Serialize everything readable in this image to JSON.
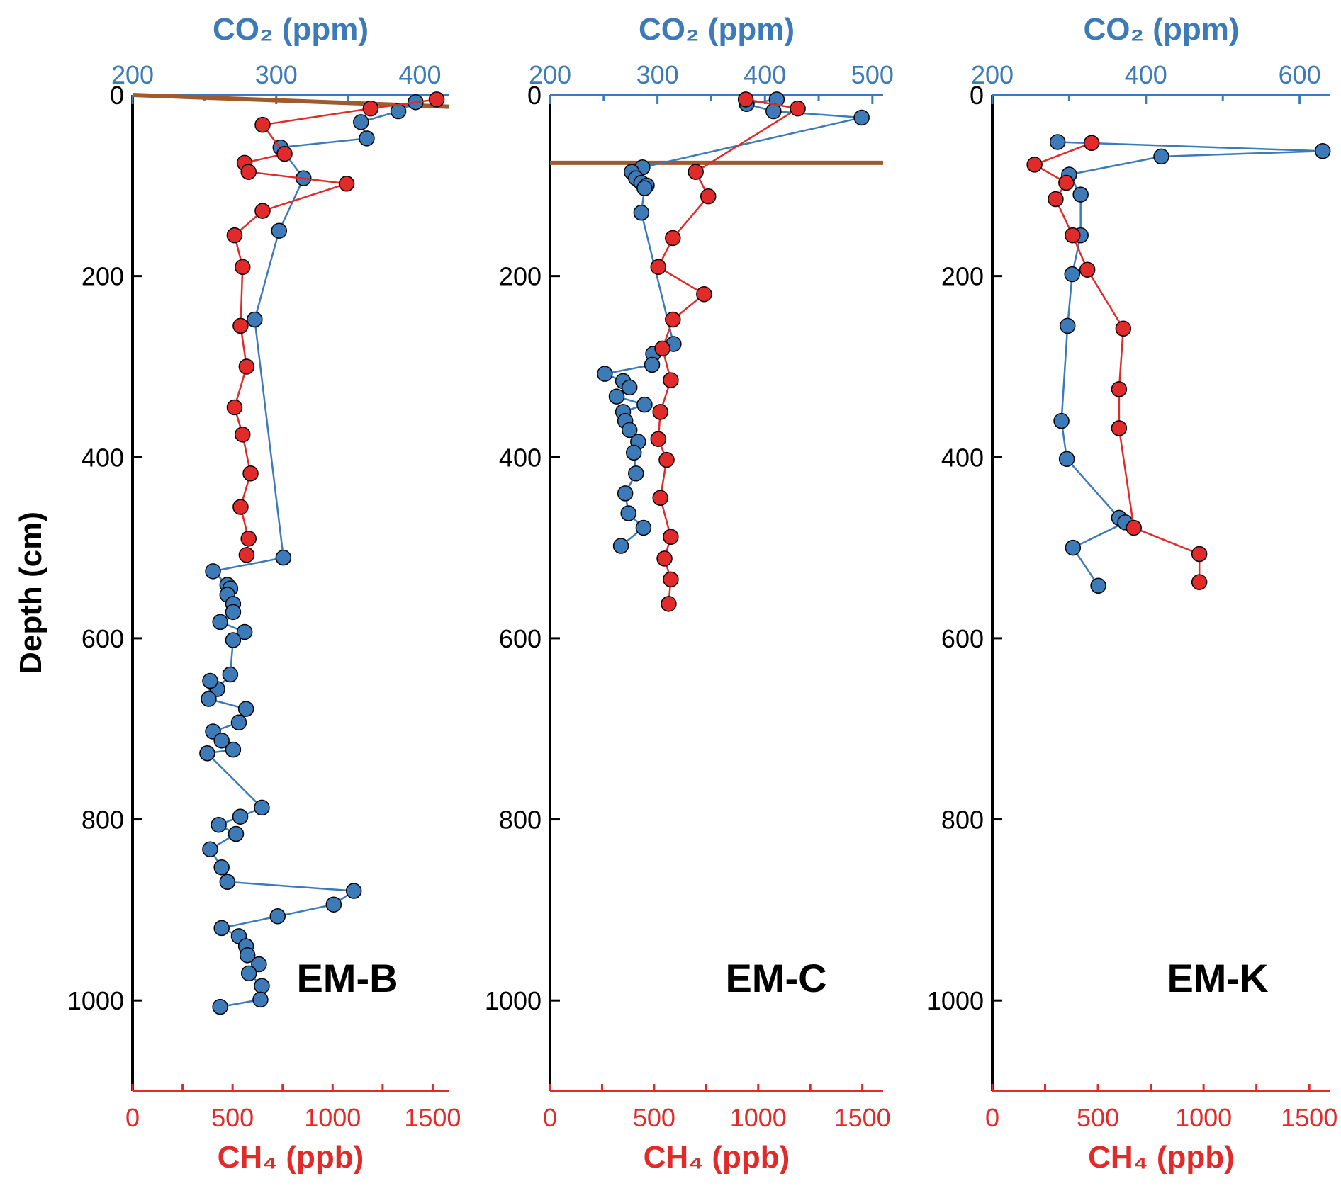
{
  "chart_data": {
    "type": "scatter",
    "y_label": "Depth (cm)",
    "y_range": [
      0,
      1100
    ],
    "y_ticks": [
      "0",
      "200",
      "400",
      "600",
      "800",
      "1000"
    ],
    "co2_axis_label": "CO₂ (ppm)",
    "ch4_axis_label": "CH₄ (ppb)",
    "colors": {
      "co2": "#3d7ab8",
      "ch4": "#e12a2a",
      "marker": "#000000",
      "line": "#a05a2c"
    },
    "panels": [
      {
        "name": "EM-B",
        "co2_range": [
          200,
          420
        ],
        "co2_ticks": [
          "200",
          "300",
          "400"
        ],
        "ch4_range": [
          0,
          1580
        ],
        "ch4_ticks": [
          "0",
          "500",
          "1000",
          "1500"
        ],
        "reference_line": {
          "depth_start": 0,
          "depth_end": 13
        },
        "co2": [
          [
            397,
            8
          ],
          [
            385,
            18
          ],
          [
            359,
            30
          ],
          [
            363,
            48
          ],
          [
            303,
            58
          ],
          [
            319,
            92
          ],
          [
            302,
            150
          ],
          [
            285,
            248
          ],
          [
            305,
            511
          ],
          [
            256,
            526
          ],
          [
            266,
            541
          ],
          [
            268,
            545
          ],
          [
            266,
            552
          ],
          [
            270,
            562
          ],
          [
            270,
            571
          ],
          [
            261,
            582
          ],
          [
            278,
            593
          ],
          [
            270,
            602
          ],
          [
            268,
            640
          ],
          [
            259,
            656
          ],
          [
            254,
            647
          ],
          [
            253,
            667
          ],
          [
            279,
            678
          ],
          [
            274,
            693
          ],
          [
            256,
            703
          ],
          [
            262,
            713
          ],
          [
            270,
            723
          ],
          [
            252,
            727
          ],
          [
            290,
            787
          ],
          [
            275,
            797
          ],
          [
            260,
            806
          ],
          [
            272,
            816
          ],
          [
            254,
            833
          ],
          [
            262,
            853
          ],
          [
            266,
            869
          ],
          [
            354,
            879
          ],
          [
            340,
            894
          ],
          [
            301,
            907
          ],
          [
            262,
            920
          ],
          [
            274,
            929
          ],
          [
            279,
            940
          ],
          [
            280,
            950
          ],
          [
            288,
            960
          ],
          [
            281,
            970
          ],
          [
            290,
            984
          ],
          [
            289,
            999
          ],
          [
            261,
            1007
          ]
        ],
        "ch4": [
          [
            1520,
            5
          ],
          [
            1190,
            15
          ],
          [
            650,
            33
          ],
          [
            760,
            65
          ],
          [
            560,
            75
          ],
          [
            580,
            85
          ],
          [
            1070,
            98
          ],
          [
            650,
            128
          ],
          [
            510,
            155
          ],
          [
            550,
            190
          ],
          [
            540,
            255
          ],
          [
            570,
            300
          ],
          [
            510,
            345
          ],
          [
            550,
            375
          ],
          [
            590,
            418
          ],
          [
            540,
            455
          ],
          [
            580,
            490
          ],
          [
            570,
            508
          ]
        ]
      },
      {
        "name": "EM-C",
        "co2_range": [
          200,
          510
        ],
        "co2_ticks": [
          "200",
          "300",
          "400",
          "500"
        ],
        "ch4_range": [
          0,
          1600
        ],
        "ch4_ticks": [
          "0",
          "500",
          "1000",
          "1500"
        ],
        "reference_line": {
          "depth_start": 75,
          "depth_end": 75
        },
        "co2": [
          [
            411,
            5
          ],
          [
            383,
            10
          ],
          [
            408,
            18
          ],
          [
            490,
            25
          ],
          [
            286,
            80
          ],
          [
            276,
            85
          ],
          [
            280,
            92
          ],
          [
            285,
            97
          ],
          [
            290,
            100
          ],
          [
            288,
            103
          ],
          [
            285,
            130
          ],
          [
            315,
            275
          ],
          [
            296,
            286
          ],
          [
            295,
            298
          ],
          [
            251,
            308
          ],
          [
            268,
            316
          ],
          [
            274,
            323
          ],
          [
            262,
            333
          ],
          [
            288,
            342
          ],
          [
            268,
            350
          ],
          [
            270,
            360
          ],
          [
            274,
            370
          ],
          [
            282,
            383
          ],
          [
            278,
            395
          ],
          [
            280,
            418
          ],
          [
            270,
            440
          ],
          [
            273,
            462
          ],
          [
            287,
            478
          ],
          [
            266,
            498
          ]
        ],
        "ch4": [
          [
            940,
            5
          ],
          [
            1190,
            15
          ],
          [
            700,
            85
          ],
          [
            760,
            112
          ],
          [
            590,
            158
          ],
          [
            520,
            190
          ],
          [
            740,
            220
          ],
          [
            590,
            248
          ],
          [
            540,
            280
          ],
          [
            580,
            315
          ],
          [
            530,
            350
          ],
          [
            520,
            380
          ],
          [
            560,
            403
          ],
          [
            530,
            445
          ],
          [
            580,
            488
          ],
          [
            550,
            512
          ],
          [
            580,
            535
          ],
          [
            570,
            562
          ]
        ]
      },
      {
        "name": "EM-K",
        "co2_range": [
          200,
          640
        ],
        "co2_ticks": [
          "200",
          "400",
          "600"
        ],
        "ch4_range": [
          0,
          1600
        ],
        "ch4_ticks": [
          "0",
          "500",
          "1000",
          "1500"
        ],
        "reference_line": null,
        "co2": [
          [
            285,
            52
          ],
          [
            630,
            62
          ],
          [
            420,
            68
          ],
          [
            300,
            88
          ],
          [
            315,
            110
          ],
          [
            315,
            155
          ],
          [
            304,
            198
          ],
          [
            298,
            255
          ],
          [
            290,
            360
          ],
          [
            297,
            402
          ],
          [
            365,
            467
          ],
          [
            373,
            472
          ],
          [
            305,
            500
          ],
          [
            338,
            542
          ]
        ],
        "ch4": [
          [
            470,
            53
          ],
          [
            200,
            77
          ],
          [
            350,
            97
          ],
          [
            300,
            115
          ],
          [
            380,
            155
          ],
          [
            450,
            193
          ],
          [
            620,
            258
          ],
          [
            600,
            325
          ],
          [
            600,
            368
          ],
          [
            670,
            478
          ],
          [
            980,
            507
          ],
          [
            980,
            538
          ]
        ]
      }
    ]
  }
}
